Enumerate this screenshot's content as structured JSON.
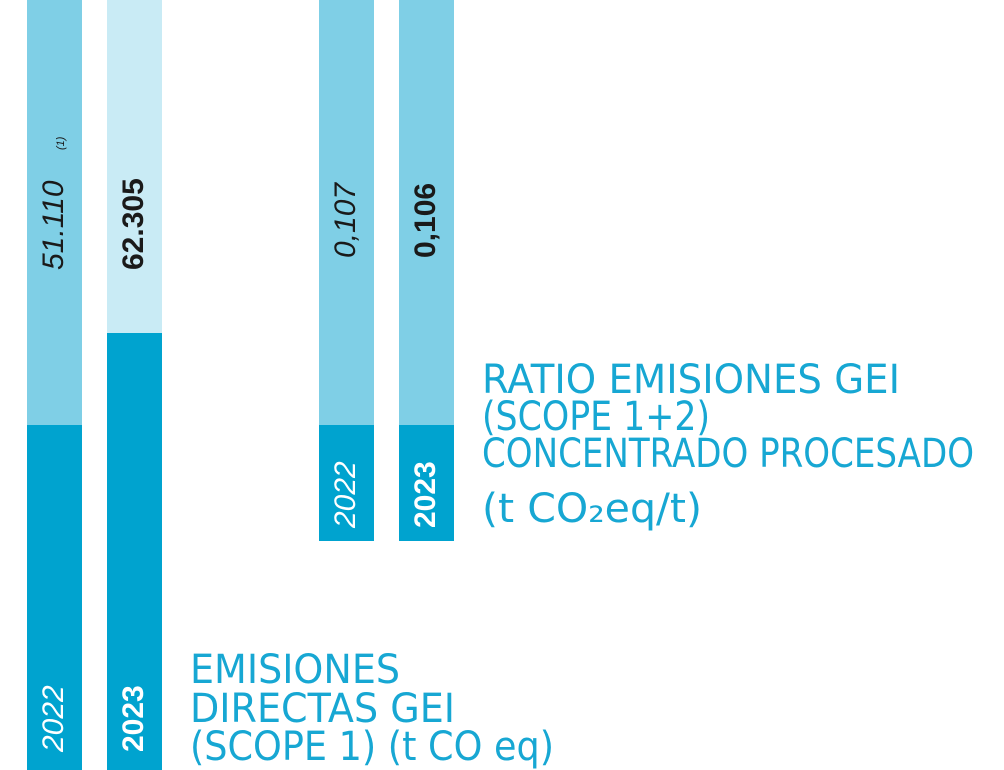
{
  "panels": [
    {
      "title": [
        "EMISIONES",
        "DIRECTAS GEI",
        "(SCOPE 1) (t CO eq)"
      ],
      "bars": [
        {
          "year": "2022",
          "value": "51.110",
          "note": "(1)"
        },
        {
          "year": "2023",
          "value": "62.305"
        }
      ]
    },
    {
      "title": [
        "RATIO EMISIONES GEI",
        "(SCOPE 1+2)",
        "CONCENTRADO PROCESADO",
        "(t CO₂eq/t)"
      ],
      "bars": [
        {
          "year": "2022",
          "value": "0,107"
        },
        {
          "year": "2023",
          "value": "0,106"
        }
      ]
    }
  ]
}
